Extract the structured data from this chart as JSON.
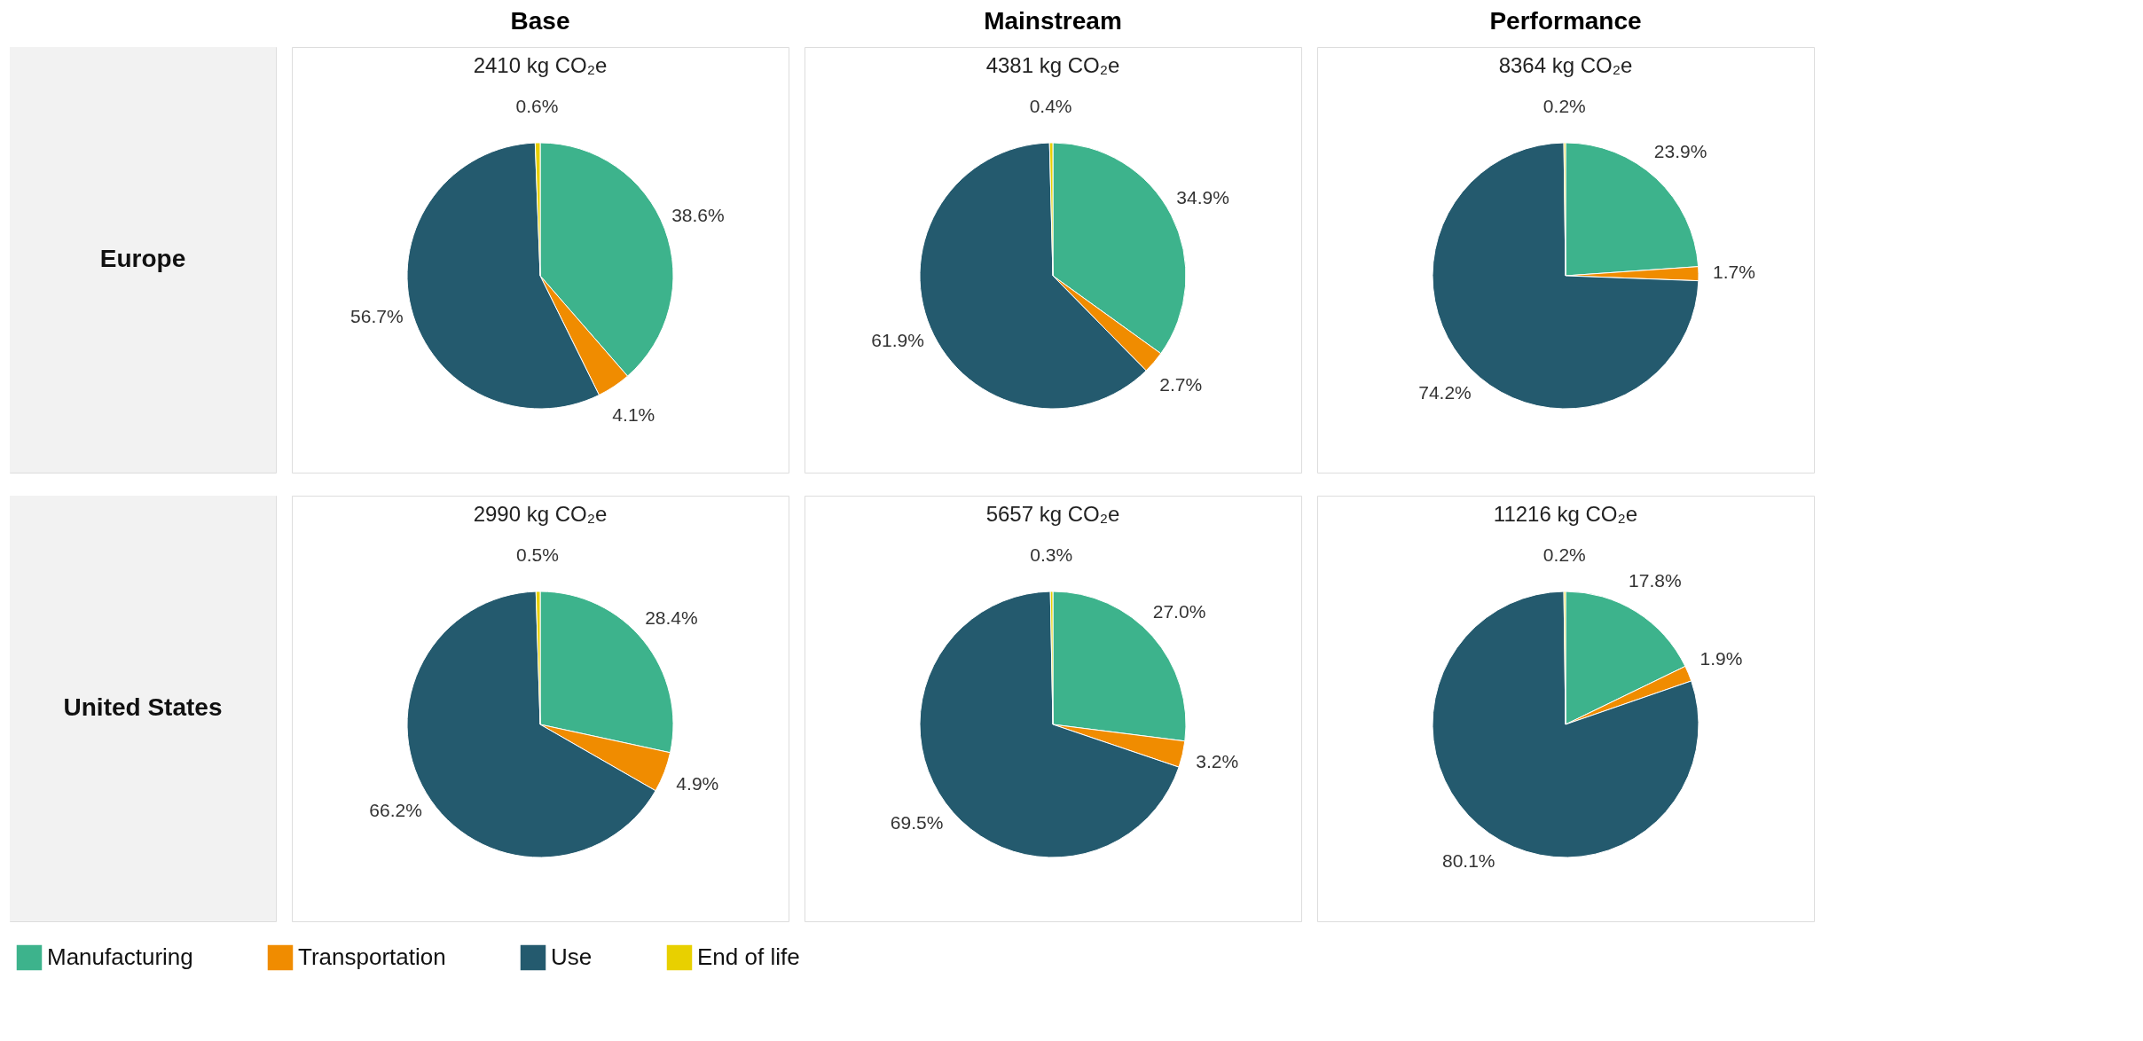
{
  "chart_data": [
    {
      "type": "pie",
      "title": "Base",
      "subtitle": "2410 kg CO₂e",
      "ylabel": "Europe",
      "categories": [
        "Manufacturing",
        "Transportation",
        "Use",
        "End of life"
      ],
      "values": [
        38.6,
        4.1,
        56.7,
        0.6
      ],
      "value_labels": [
        "38.6%",
        "4.1%",
        "56.7%",
        "0.6%"
      ],
      "colors": [
        "#3db38c",
        "#f08c00",
        "#245a6e",
        "#e8d000"
      ],
      "legend": "bottom"
    },
    {
      "type": "pie",
      "title": "Mainstream",
      "subtitle": "4381 kg CO₂e",
      "categories": [
        null,
        null,
        null,
        null
      ],
      "values": [
        34.9,
        2.7,
        61.9,
        0.4
      ],
      "value_labels": [
        "34.9%",
        "2.7%",
        "61.9%",
        "0.4%"
      ],
      "colors": [
        "#3db38c",
        "#f08c00",
        "#245a6e",
        "#e8d000"
      ]
    },
    {
      "type": "pie",
      "title": "Performance",
      "subtitle": "8364 kg CO₂e",
      "categories": [
        null,
        null,
        null,
        null
      ],
      "values": [
        23.9,
        1.7,
        74.2,
        0.2
      ],
      "value_labels": [
        "23.9%",
        "1.7%",
        "74.2%",
        "0.2%"
      ],
      "colors": [
        "#3db38c",
        "#f08c00",
        "#245a6e",
        "#e8d000"
      ]
    },
    {
      "type": "pie",
      "subtitle": "2990 kg CO₂e",
      "ylabel": "United States",
      "categories": [
        null,
        null,
        null,
        null
      ],
      "values": [
        28.4,
        4.9,
        66.2,
        0.5
      ],
      "value_labels": [
        "28.4%",
        "4.9%",
        "66.2%",
        "0.5%"
      ],
      "colors": [
        "#3db38c",
        "#f08c00",
        "#245a6e",
        "#e8d000"
      ]
    },
    {
      "type": "pie",
      "subtitle": "5657 kg CO₂e",
      "categories": [
        null,
        null,
        null,
        null
      ],
      "values": [
        27.0,
        3.2,
        69.5,
        0.3
      ],
      "value_labels": [
        "27.0%",
        "3.2%",
        "69.5%",
        "0.3%"
      ],
      "colors": [
        "#3db38c",
        "#f08c00",
        "#245a6e",
        "#e8d000"
      ]
    },
    {
      "type": "pie",
      "subtitle": "11216 kg CO₂e",
      "categories": [
        null,
        null,
        null,
        null
      ],
      "values": [
        17.8,
        1.9,
        80.1,
        0.2
      ],
      "value_labels": [
        "17.8%",
        "1.9%",
        "80.1%",
        "0.2%"
      ],
      "colors": [
        "#3db38c",
        "#f08c00",
        "#245a6e",
        "#e8d000"
      ]
    }
  ]
}
